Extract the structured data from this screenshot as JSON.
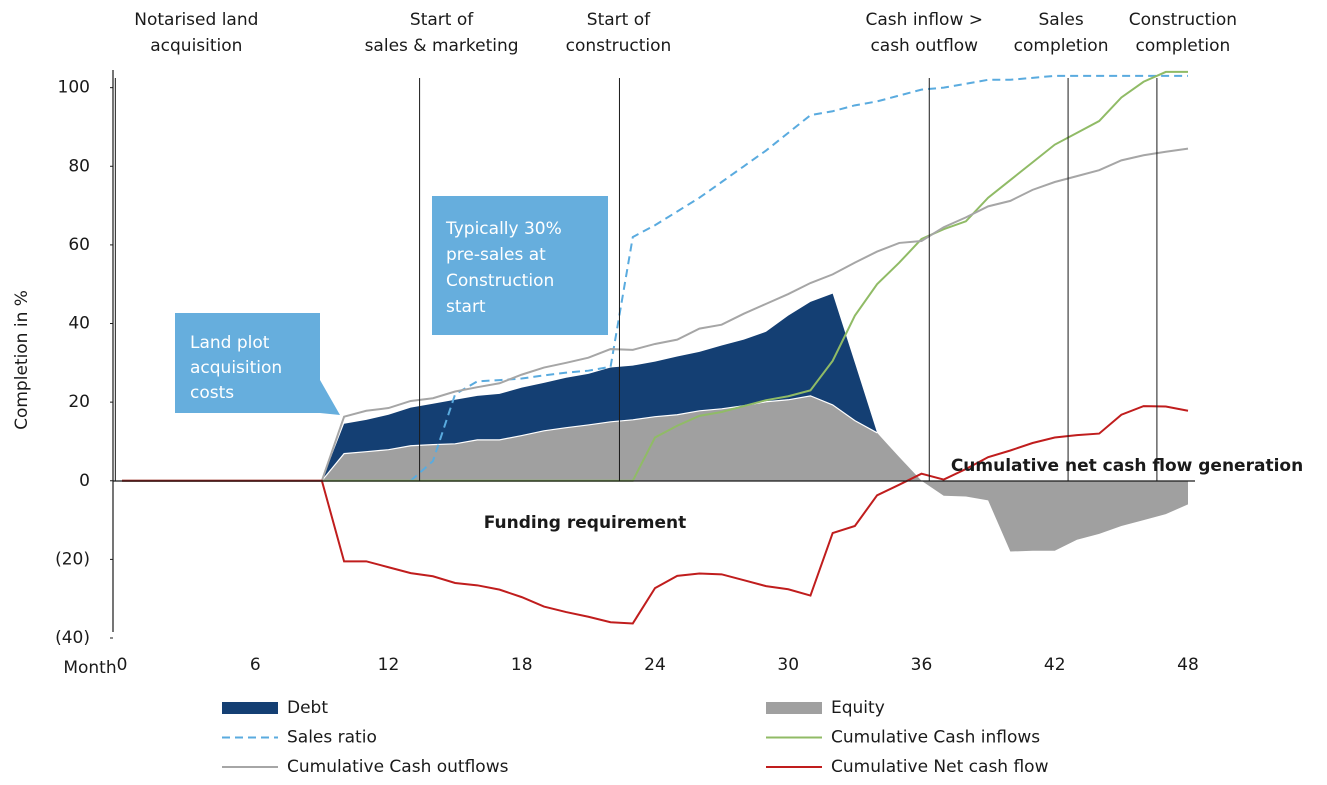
{
  "chart_data": {
    "type": "line",
    "ylabel": "Completion in %",
    "xlabel": "Month",
    "x": [
      0,
      1,
      2,
      3,
      4,
      5,
      6,
      7,
      8,
      9,
      10,
      11,
      12,
      13,
      14,
      15,
      16,
      17,
      18,
      19,
      20,
      21,
      22,
      23,
      24,
      25,
      26,
      27,
      28,
      29,
      30,
      31,
      32,
      33,
      34,
      35,
      36,
      37,
      38,
      39,
      40,
      41,
      42,
      43,
      44,
      45,
      46,
      47,
      48
    ],
    "xlim": [
      0,
      48
    ],
    "xticks": [
      0,
      6,
      12,
      18,
      24,
      30,
      36,
      42,
      48
    ],
    "ylim": [
      -40,
      105
    ],
    "yticks": [
      {
        "value": -40,
        "label": "(40)"
      },
      {
        "value": -20,
        "label": "(20)"
      },
      0,
      20,
      40,
      60,
      80,
      100
    ],
    "milestones": [
      {
        "x": -0.3,
        "label": [
          "Notarised land",
          "acquisition"
        ]
      },
      {
        "x": 13.4,
        "label": [
          "Start of",
          "sales & marketing"
        ]
      },
      {
        "x": 22.4,
        "label": [
          "Start of",
          "construction"
        ]
      },
      {
        "x": 36.35,
        "label": [
          "Cash inflow >",
          "cash outflow"
        ]
      },
      {
        "x": 42.6,
        "label": [
          "Sales",
          "completion"
        ]
      },
      {
        "x": 46.6,
        "label": [
          "Construction",
          "completion"
        ]
      }
    ],
    "callouts": [
      {
        "lines": [
          "Land plot",
          "acquisition",
          "costs"
        ]
      },
      {
        "lines": [
          "Typically 30%",
          "pre-sales at",
          "Construction",
          "start"
        ]
      }
    ],
    "annotations": [
      "Funding requirement",
      "Cumulative net cash flow generation"
    ],
    "series": [
      {
        "name": "Debt",
        "kind": "stacked-area",
        "color": "#143f73",
        "values": [
          null,
          null,
          null,
          null,
          null,
          null,
          null,
          null,
          null,
          0,
          7.6,
          8.1,
          8.9,
          9.7,
          10.4,
          11.2,
          11.2,
          11.7,
          12.2,
          12.2,
          12.7,
          13,
          13.8,
          13.8,
          14,
          14.8,
          15,
          16.1,
          16.8,
          17.8,
          21.4,
          23.9,
          28.3,
          14.7,
          0,
          null,
          null,
          null,
          null,
          null,
          null,
          null,
          null,
          null,
          null,
          null,
          null,
          null,
          null
        ]
      },
      {
        "name": "Equity",
        "kind": "area",
        "color": "#a0a0a0",
        "values": [
          0,
          0,
          0,
          0,
          0,
          0,
          0,
          0,
          0,
          0,
          6.9,
          7.4,
          7.9,
          8.9,
          9.2,
          9.4,
          10.4,
          10.4,
          11.5,
          12.7,
          13.5,
          14.2,
          15,
          15.5,
          16.3,
          16.8,
          17.8,
          18.3,
          19.1,
          20.1,
          20.6,
          21.6,
          19.3,
          15.3,
          12.2,
          6,
          0,
          -3.8,
          -4,
          -5,
          -18,
          -17.8,
          -17.8,
          -15,
          -13.5,
          -11.5,
          -10,
          -8.5,
          -6
        ]
      },
      {
        "name": "Sales ratio",
        "kind": "dashed",
        "color": "#5aabdf",
        "values": [
          null,
          null,
          null,
          null,
          null,
          null,
          null,
          null,
          null,
          null,
          null,
          null,
          null,
          0,
          5,
          22,
          25.3,
          25.6,
          26,
          26.8,
          27.5,
          28,
          29,
          62,
          65,
          68.5,
          72,
          76,
          80,
          84,
          88.5,
          93,
          94,
          95.5,
          96.5,
          98,
          99.5,
          100,
          101,
          102,
          102,
          102.5,
          103,
          103,
          103,
          103,
          103,
          103,
          103
        ]
      },
      {
        "name": "Cumulative Cash inflows",
        "kind": "line",
        "color": "#90bb66",
        "values": [
          0,
          0,
          0,
          0,
          0,
          0,
          0,
          0,
          0,
          0,
          0,
          0,
          0,
          0,
          0,
          0,
          0,
          0,
          0,
          0,
          0,
          0,
          0,
          0,
          11,
          14,
          16.5,
          17.5,
          19,
          20.5,
          21.5,
          23,
          30.5,
          42,
          50,
          55.5,
          61.5,
          64,
          66,
          72,
          76.5,
          81,
          85.5,
          88.5,
          91.5,
          97.5,
          101.5,
          104,
          104
        ]
      },
      {
        "name": "Cumulative Cash outflows",
        "kind": "line",
        "color": "#a6a6a6",
        "values": [
          0,
          0,
          0,
          0,
          0,
          0,
          0,
          0,
          0,
          0,
          16.3,
          17.8,
          18.5,
          20.3,
          21,
          22.7,
          23.8,
          24.8,
          27,
          28.8,
          30,
          31.3,
          33.5,
          33.3,
          34.8,
          35.9,
          38.7,
          39.7,
          42.5,
          45,
          47.5,
          50.3,
          52.5,
          55.5,
          58.3,
          60.5,
          61,
          64.5,
          67,
          69.8,
          71.2,
          74,
          76,
          77.5,
          79,
          81.5,
          82.8,
          83.7,
          84.5
        ]
      },
      {
        "name": "Cumulative Net cash flow",
        "kind": "line",
        "color": "#c01d1d",
        "values": [
          0,
          0,
          0,
          0,
          0,
          0,
          0,
          0,
          0,
          0,
          -20.5,
          -20.5,
          -22,
          -23.5,
          -24.3,
          -26,
          -26.6,
          -27.7,
          -29.6,
          -32,
          -33.4,
          -34.6,
          -36,
          -36.3,
          -27.3,
          -24.2,
          -23.6,
          -23.8,
          -25.3,
          -26.8,
          -27.6,
          -29.2,
          -13.3,
          -11.5,
          -3.7,
          -1,
          1.8,
          0.3,
          3,
          6,
          7.7,
          9.6,
          11,
          11.6,
          12,
          16.8,
          19,
          18.9,
          17.8
        ]
      }
    ]
  }
}
